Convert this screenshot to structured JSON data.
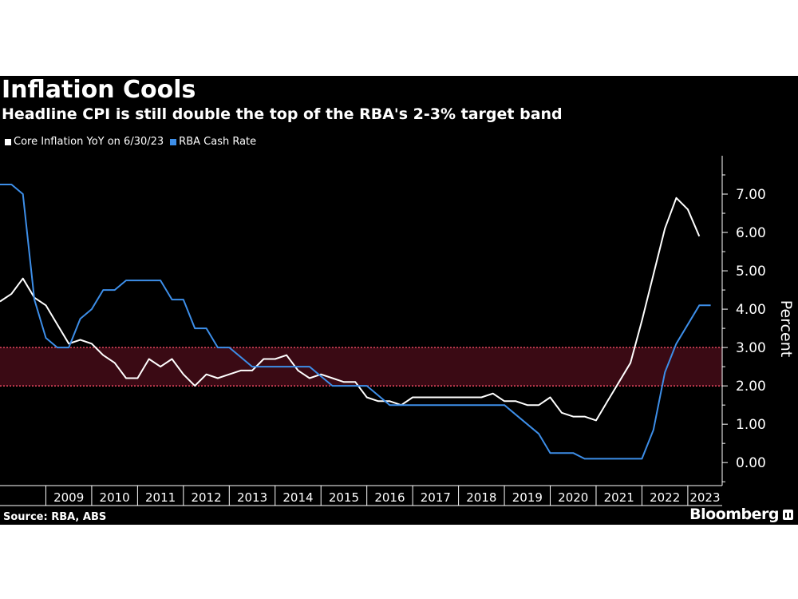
{
  "header": {
    "title": "Inflation Cools",
    "subtitle": "Headline CPI is still double the top of the RBA's 2-3% target band"
  },
  "footer": {
    "source": "Source: RBA, ABS",
    "brand": "Bloomberg"
  },
  "icons": {
    "brand": "bloomberg-logo-icon"
  },
  "colors": {
    "background": "#000000",
    "core_inflation": "#ffffff",
    "rba_cash_rate": "#3d8ee8",
    "target_band_fill": "#3a0a14",
    "target_band_line": "#e0455c",
    "text": "#ffffff"
  },
  "chart_data": {
    "type": "line",
    "title": "Inflation Cools",
    "subtitle": "Headline CPI is still double the top of the RBA's 2-3% target band",
    "ylabel": "Percent",
    "ylim": [
      -0.6,
      8.0
    ],
    "xlim": [
      2008.0,
      2023.75
    ],
    "y_ticks": [
      "0.00",
      "1.00",
      "2.00",
      "3.00",
      "4.00",
      "5.00",
      "6.00",
      "7.00"
    ],
    "y_tick_values": [
      0,
      1,
      2,
      3,
      4,
      5,
      6,
      7
    ],
    "x_ticks": [
      "2009",
      "2010",
      "2011",
      "2012",
      "2013",
      "2014",
      "2015",
      "2016",
      "2017",
      "2018",
      "2019",
      "2020",
      "2021",
      "2022",
      "2023"
    ],
    "target_band": {
      "low": 2.0,
      "high": 3.0
    },
    "legend_position": "top-left",
    "grid": false,
    "series": [
      {
        "name": "Core Inflation YoY on 6/30/23",
        "color": "#ffffff",
        "points": [
          [
            2008.0,
            4.2
          ],
          [
            2008.25,
            4.4
          ],
          [
            2008.5,
            4.8
          ],
          [
            2008.75,
            4.3
          ],
          [
            2009.0,
            4.1
          ],
          [
            2009.25,
            3.6
          ],
          [
            2009.5,
            3.1
          ],
          [
            2009.75,
            3.2
          ],
          [
            2010.0,
            3.1
          ],
          [
            2010.25,
            2.8
          ],
          [
            2010.5,
            2.6
          ],
          [
            2010.75,
            2.2
          ],
          [
            2011.0,
            2.2
          ],
          [
            2011.25,
            2.7
          ],
          [
            2011.5,
            2.5
          ],
          [
            2011.75,
            2.7
          ],
          [
            2012.0,
            2.3
          ],
          [
            2012.25,
            2.0
          ],
          [
            2012.5,
            2.3
          ],
          [
            2012.75,
            2.2
          ],
          [
            2013.0,
            2.3
          ],
          [
            2013.25,
            2.4
          ],
          [
            2013.5,
            2.4
          ],
          [
            2013.75,
            2.7
          ],
          [
            2014.0,
            2.7
          ],
          [
            2014.25,
            2.8
          ],
          [
            2014.5,
            2.4
          ],
          [
            2014.75,
            2.2
          ],
          [
            2015.0,
            2.3
          ],
          [
            2015.25,
            2.2
          ],
          [
            2015.5,
            2.1
          ],
          [
            2015.75,
            2.1
          ],
          [
            2016.0,
            1.7
          ],
          [
            2016.25,
            1.6
          ],
          [
            2016.5,
            1.6
          ],
          [
            2016.75,
            1.5
          ],
          [
            2017.0,
            1.7
          ],
          [
            2017.25,
            1.7
          ],
          [
            2017.5,
            1.7
          ],
          [
            2017.75,
            1.7
          ],
          [
            2018.0,
            1.7
          ],
          [
            2018.25,
            1.7
          ],
          [
            2018.5,
            1.7
          ],
          [
            2018.75,
            1.8
          ],
          [
            2019.0,
            1.6
          ],
          [
            2019.25,
            1.6
          ],
          [
            2019.5,
            1.5
          ],
          [
            2019.75,
            1.5
          ],
          [
            2020.0,
            1.7
          ],
          [
            2020.25,
            1.3
          ],
          [
            2020.5,
            1.2
          ],
          [
            2020.75,
            1.2
          ],
          [
            2021.0,
            1.1
          ],
          [
            2021.25,
            1.6
          ],
          [
            2021.5,
            2.1
          ],
          [
            2021.75,
            2.6
          ],
          [
            2022.0,
            3.7
          ],
          [
            2022.25,
            4.9
          ],
          [
            2022.5,
            6.1
          ],
          [
            2022.75,
            6.9
          ],
          [
            2023.0,
            6.6
          ],
          [
            2023.25,
            5.9
          ]
        ]
      },
      {
        "name": "RBA Cash Rate",
        "color": "#3d8ee8",
        "points": [
          [
            2008.0,
            7.25
          ],
          [
            2008.25,
            7.25
          ],
          [
            2008.5,
            7.0
          ],
          [
            2008.75,
            4.25
          ],
          [
            2009.0,
            3.25
          ],
          [
            2009.25,
            3.0
          ],
          [
            2009.5,
            3.0
          ],
          [
            2009.75,
            3.75
          ],
          [
            2010.0,
            4.0
          ],
          [
            2010.25,
            4.5
          ],
          [
            2010.5,
            4.5
          ],
          [
            2010.75,
            4.75
          ],
          [
            2011.0,
            4.75
          ],
          [
            2011.25,
            4.75
          ],
          [
            2011.5,
            4.75
          ],
          [
            2011.75,
            4.25
          ],
          [
            2012.0,
            4.25
          ],
          [
            2012.25,
            3.5
          ],
          [
            2012.5,
            3.5
          ],
          [
            2012.75,
            3.0
          ],
          [
            2013.0,
            3.0
          ],
          [
            2013.25,
            2.75
          ],
          [
            2013.5,
            2.5
          ],
          [
            2013.75,
            2.5
          ],
          [
            2014.0,
            2.5
          ],
          [
            2014.25,
            2.5
          ],
          [
            2014.5,
            2.5
          ],
          [
            2014.75,
            2.5
          ],
          [
            2015.0,
            2.25
          ],
          [
            2015.25,
            2.0
          ],
          [
            2015.5,
            2.0
          ],
          [
            2015.75,
            2.0
          ],
          [
            2016.0,
            2.0
          ],
          [
            2016.25,
            1.75
          ],
          [
            2016.5,
            1.5
          ],
          [
            2016.75,
            1.5
          ],
          [
            2017.0,
            1.5
          ],
          [
            2017.25,
            1.5
          ],
          [
            2017.5,
            1.5
          ],
          [
            2017.75,
            1.5
          ],
          [
            2018.0,
            1.5
          ],
          [
            2018.25,
            1.5
          ],
          [
            2018.5,
            1.5
          ],
          [
            2018.75,
            1.5
          ],
          [
            2019.0,
            1.5
          ],
          [
            2019.25,
            1.25
          ],
          [
            2019.5,
            1.0
          ],
          [
            2019.75,
            0.75
          ],
          [
            2020.0,
            0.25
          ],
          [
            2020.25,
            0.25
          ],
          [
            2020.5,
            0.25
          ],
          [
            2020.75,
            0.1
          ],
          [
            2021.0,
            0.1
          ],
          [
            2021.25,
            0.1
          ],
          [
            2021.5,
            0.1
          ],
          [
            2021.75,
            0.1
          ],
          [
            2022.0,
            0.1
          ],
          [
            2022.25,
            0.85
          ],
          [
            2022.5,
            2.35
          ],
          [
            2022.75,
            3.1
          ],
          [
            2023.0,
            3.6
          ],
          [
            2023.25,
            4.1
          ],
          [
            2023.5,
            4.1
          ]
        ]
      }
    ]
  }
}
